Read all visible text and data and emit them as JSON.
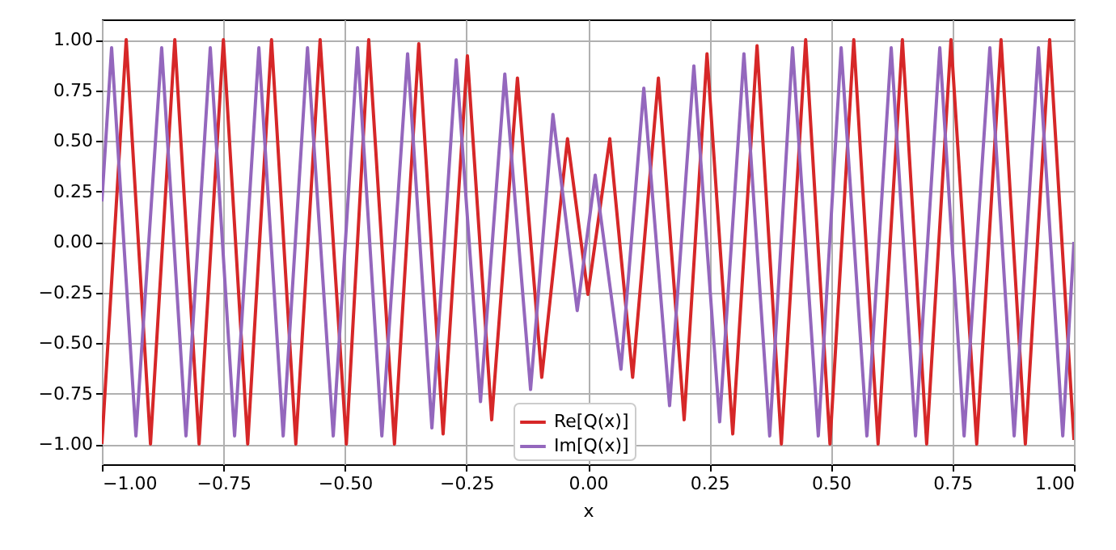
{
  "chart_data": {
    "type": "line",
    "xlabel": "x",
    "xlim": [
      -1,
      1
    ],
    "ylim": [
      -1.1,
      1.1
    ],
    "xticks": [
      {
        "value": -1,
        "label": "−1.00"
      },
      {
        "value": -0.75,
        "label": "−0.75"
      },
      {
        "value": -0.5,
        "label": "−0.50"
      },
      {
        "value": -0.25,
        "label": "−0.25"
      },
      {
        "value": 0,
        "label": "0.00"
      },
      {
        "value": 0.25,
        "label": "0.25"
      },
      {
        "value": 0.5,
        "label": "0.50"
      },
      {
        "value": 0.75,
        "label": "0.75"
      },
      {
        "value": 1,
        "label": "1.00"
      }
    ],
    "yticks": [
      {
        "value": -1,
        "label": "−1.00"
      },
      {
        "value": -0.75,
        "label": "−0.75"
      },
      {
        "value": -0.5,
        "label": "−0.50"
      },
      {
        "value": -0.25,
        "label": "−0.25"
      },
      {
        "value": 0,
        "label": "0.00"
      },
      {
        "value": 0.25,
        "label": "0.25"
      },
      {
        "value": 0.5,
        "label": "0.50"
      },
      {
        "value": 0.75,
        "label": "0.75"
      },
      {
        "value": 1,
        "label": "1.00"
      }
    ],
    "grid": true,
    "legend": "bottom",
    "line_style": "solid",
    "marker": "none",
    "series": [
      {
        "name": "Re[Q(x)]",
        "color": "#d62728",
        "x": [
          -1.0,
          -0.95,
          -0.9,
          -0.85,
          -0.8,
          -0.75,
          -0.7,
          -0.651,
          -0.601,
          -0.551,
          -0.497,
          -0.451,
          -0.398,
          -0.348,
          -0.298,
          -0.248,
          -0.198,
          -0.145,
          -0.095,
          -0.042,
          0,
          0.045,
          0.092,
          0.145,
          0.198,
          0.245,
          0.298,
          0.348,
          0.398,
          0.448,
          0.498,
          0.547,
          0.597,
          0.647,
          0.697,
          0.747,
          0.8,
          0.85,
          0.9,
          0.95,
          1.0
        ],
        "values": [
          -1,
          1,
          -1,
          1,
          -1,
          1,
          -1,
          1,
          -1,
          1,
          -1,
          1,
          -1,
          0.98,
          -0.95,
          0.92,
          -0.88,
          0.81,
          -0.67,
          0.51,
          -0.26,
          0.51,
          -0.67,
          0.81,
          -0.88,
          0.93,
          -0.95,
          0.97,
          -1,
          1,
          -1,
          1,
          -1,
          1,
          -1,
          1,
          -1,
          1,
          -1,
          1,
          -0.98
        ]
      },
      {
        "name": "Im[Q(x)]",
        "color": "#9467bd",
        "x": [
          -1.0,
          -0.98,
          -0.93,
          -0.877,
          -0.827,
          -0.777,
          -0.727,
          -0.677,
          -0.627,
          -0.577,
          -0.524,
          -0.474,
          -0.424,
          -0.371,
          -0.321,
          -0.271,
          -0.221,
          -0.171,
          -0.118,
          -0.072,
          -0.022,
          0.015,
          0.068,
          0.115,
          0.168,
          0.218,
          0.271,
          0.321,
          0.374,
          0.421,
          0.474,
          0.521,
          0.574,
          0.624,
          0.674,
          0.724,
          0.774,
          0.827,
          0.877,
          0.927,
          0.977,
          1.0
        ],
        "values": [
          0.2,
          0.96,
          -0.96,
          0.96,
          -0.96,
          0.96,
          -0.96,
          0.96,
          -0.96,
          0.96,
          -0.96,
          0.96,
          -0.96,
          0.93,
          -0.92,
          0.9,
          -0.79,
          0.83,
          -0.73,
          0.63,
          -0.34,
          0.33,
          -0.63,
          0.76,
          -0.81,
          0.87,
          -0.89,
          0.93,
          -0.96,
          0.96,
          -0.96,
          0.96,
          -0.96,
          0.96,
          -0.96,
          0.96,
          -0.96,
          0.96,
          -0.96,
          0.96,
          -0.96,
          0.0
        ]
      }
    ]
  }
}
